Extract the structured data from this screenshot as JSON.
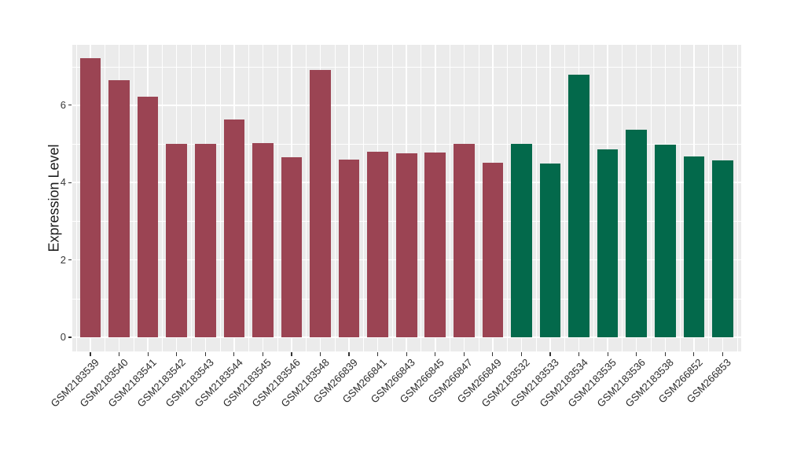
{
  "chart_data": {
    "type": "bar",
    "title": "",
    "xlabel": "",
    "ylabel": "Expression Level",
    "ylim": [
      0,
      7.56
    ],
    "yticks": [
      0,
      2,
      4,
      6
    ],
    "yticks_minor": [
      1,
      3,
      5,
      7
    ],
    "grid": "white major and minor gridlines on gray panel, ggplot style",
    "legend_position": "none",
    "categories": [
      "GSM2183539",
      "GSM2183540",
      "GSM2183541",
      "GSM2183542",
      "GSM2183543",
      "GSM2183544",
      "GSM2183545",
      "GSM2183546",
      "GSM2183548",
      "GSM266839",
      "GSM266841",
      "GSM266843",
      "GSM266845",
      "GSM266847",
      "GSM266849",
      "GSM2183532",
      "GSM2183533",
      "GSM2183534",
      "GSM2183535",
      "GSM2183536",
      "GSM2183538",
      "GSM266852",
      "GSM266853"
    ],
    "values": [
      7.22,
      6.65,
      6.21,
      4.99,
      4.99,
      5.62,
      5.03,
      4.65,
      6.91,
      4.6,
      4.8,
      4.75,
      4.77,
      5.0,
      4.51,
      5.0,
      4.49,
      6.79,
      4.85,
      5.36,
      4.98,
      4.67,
      4.57
    ],
    "bar_groups": [
      "maroon",
      "maroon",
      "maroon",
      "maroon",
      "maroon",
      "maroon",
      "maroon",
      "maroon",
      "maroon",
      "maroon",
      "maroon",
      "maroon",
      "maroon",
      "maroon",
      "maroon",
      "green",
      "green",
      "green",
      "green",
      "green",
      "green",
      "green",
      "green"
    ],
    "group_colors": {
      "maroon": "#9B4453",
      "green": "#03694B"
    },
    "colors": {
      "panel_background": "#EBEBEB",
      "gridline": "#FFFFFF",
      "axis_text": "#383838",
      "tick_mark": "#333333",
      "figure_background": "#FFFFFF"
    }
  }
}
